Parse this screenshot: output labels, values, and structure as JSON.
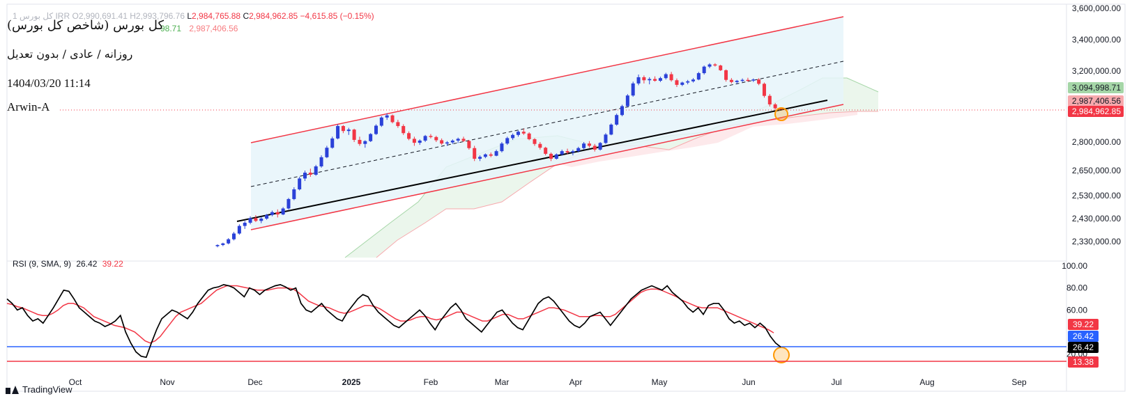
{
  "header": {
    "symbol_dim": "1 کل بورس IRR",
    "open_label": "O",
    "open_value": "2,990,691.41",
    "high_label": "H",
    "high_value": "2,993,796.76",
    "low_label": "L",
    "low_value": "2,984,765.88",
    "close_label": "C",
    "close_value": "2,984,962.85",
    "change": "−4,615.85 (−0.15%)",
    "cloud_value_green": "98.71",
    "cloud_value_red": "2,987,406.56"
  },
  "annotations": {
    "title": "کل بورس (شاخص کل بورس)",
    "subtitle": "روزانه / عادی / بدون تعدیل",
    "datetime": "1404/03/20 11:14",
    "author": "Arwin-A"
  },
  "rsi_legend": {
    "label": "RSI (9, SMA, 9)",
    "rsi": "26.42",
    "sma": "39.22"
  },
  "brand": {
    "name": "TradingView"
  },
  "colors": {
    "up": "#2a41d8",
    "down": "#f23645",
    "channel": "#f23645",
    "channel_fill": "#e6f4fa",
    "cloud_green": "#4caf50",
    "cloud_red": "#f77c80",
    "rsi_line": "#000000",
    "rsi_sma": "#f23645",
    "level_blue": "#2962ff",
    "level_red": "#f23645",
    "marker": "#ff9800"
  },
  "chart_data": [
    {
      "type": "candlestick",
      "y_axis_ticks": [
        "3,600,000.00",
        "3,400,000.00",
        "3,200,000.00",
        "2,800,000.00",
        "2,650,000.00",
        "2,530,000.00",
        "2,430,000.00",
        "2,330,000.00"
      ],
      "x_axis_ticks": [
        "Oct",
        "Nov",
        "Dec",
        "2025",
        "Feb",
        "Mar",
        "Apr",
        "May",
        "Jun",
        "Jul",
        "Aug",
        "Sep"
      ],
      "price_labels": [
        {
          "text": "3,094,998.71",
          "role": "cloud-top",
          "color": "#a5d6a7"
        },
        {
          "text": "2,987,406.56",
          "role": "cloud-bottom",
          "color": "#f7a9ad"
        },
        {
          "text": "2,984,962.85",
          "role": "last-price",
          "color": "#f23645"
        }
      ],
      "candles_ohlc": [
        [
          2310000,
          2318000,
          2305000,
          2315000
        ],
        [
          2315000,
          2325000,
          2310000,
          2322000
        ],
        [
          2322000,
          2345000,
          2318000,
          2340000
        ],
        [
          2340000,
          2372000,
          2335000,
          2365000
        ],
        [
          2365000,
          2405000,
          2360000,
          2398000
        ],
        [
          2398000,
          2420000,
          2385000,
          2412000
        ],
        [
          2412000,
          2440000,
          2405000,
          2432000
        ],
        [
          2432000,
          2445000,
          2415000,
          2420000
        ],
        [
          2420000,
          2438000,
          2410000,
          2430000
        ],
        [
          2430000,
          2450000,
          2425000,
          2446000
        ],
        [
          2446000,
          2465000,
          2440000,
          2458000
        ],
        [
          2458000,
          2470000,
          2435000,
          2448000
        ],
        [
          2448000,
          2480000,
          2445000,
          2474000
        ],
        [
          2474000,
          2520000,
          2470000,
          2515000
        ],
        [
          2515000,
          2570000,
          2510000,
          2560000
        ],
        [
          2560000,
          2620000,
          2555000,
          2612000
        ],
        [
          2612000,
          2650000,
          2600000,
          2640000
        ],
        [
          2640000,
          2660000,
          2620000,
          2630000
        ],
        [
          2630000,
          2680000,
          2625000,
          2672000
        ],
        [
          2672000,
          2730000,
          2665000,
          2720000
        ],
        [
          2720000,
          2780000,
          2715000,
          2770000
        ],
        [
          2770000,
          2830000,
          2765000,
          2820000
        ],
        [
          2820000,
          2900000,
          2815000,
          2890000
        ],
        [
          2890000,
          2895000,
          2850000,
          2862000
        ],
        [
          2862000,
          2880000,
          2840000,
          2870000
        ],
        [
          2870000,
          2875000,
          2800000,
          2812000
        ],
        [
          2812000,
          2830000,
          2780000,
          2790000
        ],
        [
          2790000,
          2810000,
          2770000,
          2805000
        ],
        [
          2805000,
          2850000,
          2800000,
          2845000
        ],
        [
          2845000,
          2900000,
          2840000,
          2892000
        ],
        [
          2892000,
          2945000,
          2885000,
          2938000
        ],
        [
          2938000,
          2962000,
          2925000,
          2950000
        ],
        [
          2950000,
          2955000,
          2905000,
          2912000
        ],
        [
          2912000,
          2925000,
          2880000,
          2890000
        ],
        [
          2890000,
          2900000,
          2840000,
          2850000
        ],
        [
          2850000,
          2860000,
          2810000,
          2818000
        ],
        [
          2818000,
          2830000,
          2780000,
          2796000
        ],
        [
          2796000,
          2815000,
          2785000,
          2808000
        ],
        [
          2808000,
          2840000,
          2800000,
          2834000
        ],
        [
          2834000,
          2845000,
          2820000,
          2828000
        ],
        [
          2828000,
          2835000,
          2800000,
          2810000
        ],
        [
          2810000,
          2820000,
          2785000,
          2792000
        ],
        [
          2792000,
          2805000,
          2780000,
          2798000
        ],
        [
          2798000,
          2815000,
          2790000,
          2808000
        ],
        [
          2808000,
          2825000,
          2795000,
          2818000
        ],
        [
          2818000,
          2830000,
          2800000,
          2806000
        ],
        [
          2806000,
          2812000,
          2760000,
          2768000
        ],
        [
          2768000,
          2780000,
          2700000,
          2712000
        ],
        [
          2712000,
          2730000,
          2700000,
          2722000
        ],
        [
          2722000,
          2740000,
          2715000,
          2735000
        ],
        [
          2735000,
          2745000,
          2720000,
          2728000
        ],
        [
          2728000,
          2760000,
          2725000,
          2752000
        ],
        [
          2752000,
          2800000,
          2745000,
          2792000
        ],
        [
          2792000,
          2830000,
          2785000,
          2822000
        ],
        [
          2822000,
          2848000,
          2812000,
          2840000
        ],
        [
          2840000,
          2865000,
          2830000,
          2858000
        ],
        [
          2858000,
          2875000,
          2840000,
          2848000
        ],
        [
          2848000,
          2855000,
          2810000,
          2816000
        ],
        [
          2816000,
          2822000,
          2780000,
          2790000
        ],
        [
          2790000,
          2800000,
          2760000,
          2770000
        ],
        [
          2770000,
          2775000,
          2730000,
          2738000
        ],
        [
          2738000,
          2745000,
          2700000,
          2712000
        ],
        [
          2712000,
          2740000,
          2708000,
          2735000
        ],
        [
          2735000,
          2760000,
          2728000,
          2752000
        ],
        [
          2752000,
          2765000,
          2735000,
          2745000
        ],
        [
          2745000,
          2760000,
          2730000,
          2752000
        ],
        [
          2752000,
          2775000,
          2745000,
          2768000
        ],
        [
          2768000,
          2800000,
          2760000,
          2792000
        ],
        [
          2792000,
          2805000,
          2770000,
          2780000
        ],
        [
          2780000,
          2790000,
          2750000,
          2760000
        ],
        [
          2760000,
          2800000,
          2755000,
          2795000
        ],
        [
          2795000,
          2850000,
          2790000,
          2842000
        ],
        [
          2842000,
          2905000,
          2838000,
          2898000
        ],
        [
          2898000,
          2960000,
          2892000,
          2952000
        ],
        [
          2952000,
          3010000,
          2945000,
          3002000
        ],
        [
          3002000,
          3070000,
          2995000,
          3062000
        ],
        [
          3062000,
          3140000,
          3055000,
          3130000
        ],
        [
          3130000,
          3180000,
          3120000,
          3165000
        ],
        [
          3165000,
          3175000,
          3130000,
          3148000
        ],
        [
          3148000,
          3165000,
          3125000,
          3155000
        ],
        [
          3155000,
          3170000,
          3140000,
          3145000
        ],
        [
          3145000,
          3168000,
          3138000,
          3160000
        ],
        [
          3160000,
          3190000,
          3152000,
          3182000
        ],
        [
          3182000,
          3195000,
          3140000,
          3148000
        ],
        [
          3148000,
          3158000,
          3110000,
          3122000
        ],
        [
          3122000,
          3140000,
          3115000,
          3135000
        ],
        [
          3135000,
          3150000,
          3125000,
          3142000
        ],
        [
          3142000,
          3160000,
          3135000,
          3152000
        ],
        [
          3152000,
          3195000,
          3148000,
          3188000
        ],
        [
          3188000,
          3235000,
          3180000,
          3228000
        ],
        [
          3228000,
          3250000,
          3218000,
          3242000
        ],
        [
          3242000,
          3250000,
          3228000,
          3235000
        ],
        [
          3235000,
          3240000,
          3200000,
          3205000
        ],
        [
          3205000,
          3210000,
          3140000,
          3150000
        ],
        [
          3150000,
          3160000,
          3130000,
          3138000
        ],
        [
          3138000,
          3150000,
          3128000,
          3145000
        ],
        [
          3145000,
          3158000,
          3138000,
          3150000
        ],
        [
          3150000,
          3162000,
          3140000,
          3146000
        ],
        [
          3146000,
          3158000,
          3138000,
          3152000
        ],
        [
          3152000,
          3160000,
          3120000,
          3128000
        ],
        [
          3128000,
          3135000,
          3050000,
          3060000
        ],
        [
          3060000,
          3070000,
          3000000,
          3012000
        ],
        [
          3012000,
          3020000,
          2982000,
          2990000
        ],
        [
          2990000,
          2994000,
          2984000,
          2985000
        ]
      ],
      "rsi_axis_ticks": [
        "100.00",
        "80.00",
        "60.00",
        "20.00"
      ],
      "rsi_labels": [
        {
          "text": "39.22",
          "color": "#f23645"
        },
        {
          "text": "26.42",
          "color": "#2962ff"
        },
        {
          "text": "26.42",
          "color": "#000000"
        },
        {
          "text": "13.38",
          "color": "#f23645"
        }
      ],
      "rsi_levels": [
        {
          "value": 26.42,
          "color": "#2962ff"
        },
        {
          "value": 13.38,
          "color": "#f23645"
        }
      ],
      "rsi": [
        70,
        66,
        60,
        62,
        55,
        50,
        52,
        48,
        55,
        62,
        70,
        78,
        77,
        70,
        62,
        58,
        54,
        50,
        48,
        45,
        47,
        50,
        55,
        40,
        30,
        22,
        18,
        17,
        30,
        42,
        52,
        56,
        60,
        58,
        55,
        52,
        58,
        66,
        72,
        78,
        80,
        81,
        83,
        82,
        80,
        76,
        72,
        80,
        78,
        74,
        78,
        80,
        82,
        83,
        81,
        78,
        80,
        66,
        60,
        58,
        62,
        66,
        60,
        56,
        52,
        50,
        58,
        64,
        70,
        74,
        72,
        64,
        58,
        54,
        50,
        46,
        44,
        48,
        52,
        56,
        60,
        55,
        48,
        42,
        50,
        56,
        62,
        66,
        60,
        52,
        48,
        44,
        40,
        46,
        52,
        58,
        60,
        54,
        48,
        44,
        42,
        50,
        58,
        66,
        70,
        72,
        68,
        62,
        56,
        50,
        46,
        44,
        48,
        54,
        56,
        58,
        52,
        46,
        52,
        58,
        64,
        70,
        74,
        78,
        80,
        82,
        80,
        78,
        82,
        76,
        72,
        68,
        62,
        58,
        62,
        56,
        64,
        66,
        66,
        60,
        52,
        48,
        50,
        46,
        48,
        44,
        48,
        44,
        36,
        30,
        26.42
      ],
      "rsi_sma": [
        66,
        65,
        63,
        62,
        60,
        58,
        56,
        55,
        55,
        57,
        60,
        64,
        66,
        66,
        64,
        62,
        58,
        54,
        52,
        50,
        48,
        46,
        45,
        44,
        42,
        40,
        36,
        32,
        30,
        32,
        36,
        42,
        48,
        54,
        58,
        60,
        62,
        64,
        66,
        70,
        74,
        78,
        80,
        82,
        82,
        82,
        81,
        80,
        79,
        78,
        78,
        78,
        79,
        80,
        80,
        80,
        79,
        76,
        72,
        68,
        66,
        64,
        63,
        62,
        60,
        58,
        57,
        58,
        60,
        62,
        64,
        64,
        63,
        61,
        58,
        55,
        52,
        50,
        50,
        51,
        53,
        54,
        54,
        52,
        51,
        52,
        54,
        56,
        58,
        58,
        56,
        54,
        52,
        50,
        50,
        52,
        54,
        56,
        56,
        54,
        52,
        52,
        54,
        56,
        58,
        60,
        62,
        62,
        61,
        60,
        58,
        56,
        54,
        54,
        54,
        55,
        55,
        54,
        54,
        56,
        60,
        64,
        68,
        72,
        76,
        78,
        79,
        79,
        78,
        76,
        74,
        72,
        69,
        67,
        65,
        63,
        62,
        62,
        62,
        62,
        60,
        58,
        56,
        54,
        52,
        50,
        48,
        46,
        44,
        42,
        39.22
      ]
    }
  ]
}
